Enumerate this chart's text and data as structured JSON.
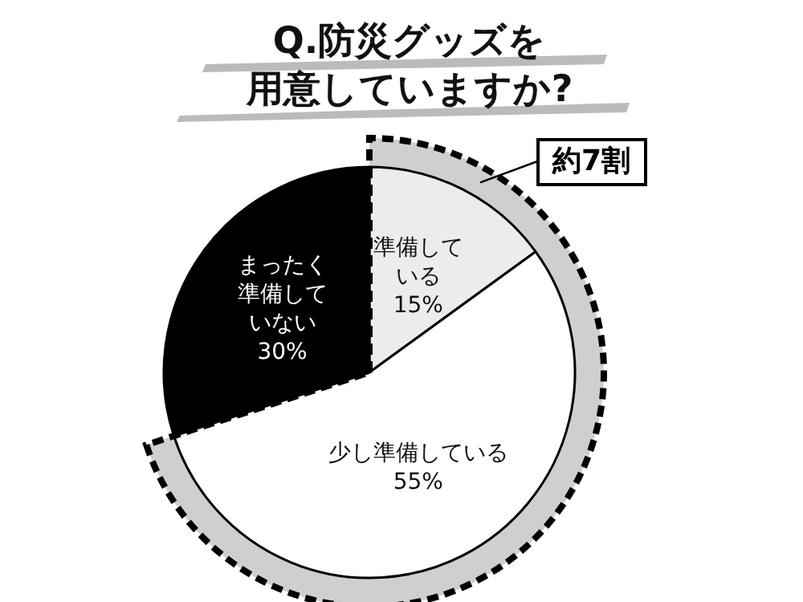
{
  "chart_data": {
    "type": "pie",
    "title": "Q.防災グッズを用意していますか?",
    "categories": [
      "準備している",
      "少し準備している",
      "まったく準備していない"
    ],
    "values": [
      15,
      55,
      30
    ],
    "value_labels": [
      "15%",
      "55%",
      "30%"
    ],
    "colors": [
      "#ececec",
      "#ffffff",
      "#000000"
    ],
    "annotations": [
      "約7割"
    ]
  }
}
